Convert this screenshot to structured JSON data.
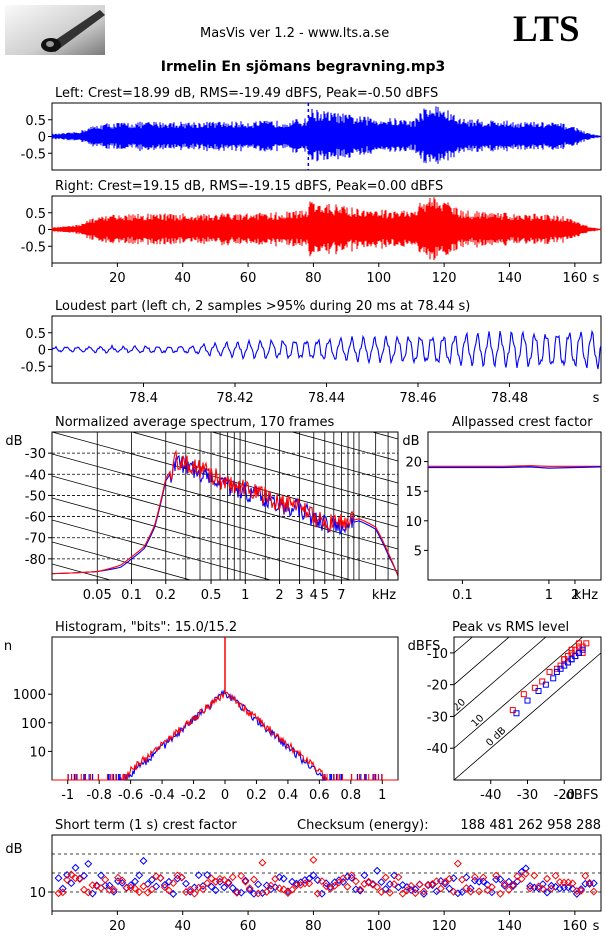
{
  "header": {
    "app_title": "MasVis ver 1.2 - www.lts.a.se",
    "brand": "LTS",
    "file_title": "Irmelin En sjömans begravning.mp3"
  },
  "colors": {
    "left": "#0000ff",
    "right": "#ff0000",
    "axis": "#000000",
    "grid": "#000000"
  },
  "chart_data": [
    {
      "id": "left-waveform",
      "type": "area",
      "title": "Left: Crest=18.99 dB, RMS=-19.49 dBFS, Peak=-0.50 dBFS",
      "color": "#0000ff",
      "xlim": [
        0,
        168
      ],
      "ylim": [
        -1,
        1
      ],
      "yticks": [
        "0.5",
        "0",
        "-0.5"
      ],
      "ytick_values": [
        0.5,
        0,
        -0.5
      ],
      "marker_x": 78.44,
      "envelope": {
        "x": [
          0,
          4,
          8,
          12,
          16,
          20,
          30,
          40,
          50,
          60,
          70,
          78,
          79,
          85,
          95,
          105,
          111,
          113,
          118,
          121,
          125,
          135,
          145,
          155,
          160,
          164,
          168
        ],
        "amp": [
          0.08,
          0.1,
          0.15,
          0.3,
          0.4,
          0.42,
          0.45,
          0.45,
          0.45,
          0.46,
          0.48,
          0.55,
          0.85,
          0.75,
          0.6,
          0.55,
          0.5,
          0.85,
          0.95,
          0.8,
          0.55,
          0.5,
          0.45,
          0.42,
          0.3,
          0.1,
          0.02
        ]
      }
    },
    {
      "id": "right-waveform",
      "type": "area",
      "title": "Right: Crest=19.15 dB, RMS=-19.15 dBFS, Peak=0.00 dBFS",
      "color": "#ff0000",
      "xlim": [
        0,
        168
      ],
      "ylim": [
        -1,
        1
      ],
      "yticks": [
        "0.5",
        "0",
        "-0.5"
      ],
      "ytick_values": [
        0.5,
        0,
        -0.5
      ],
      "xticks": [
        "20",
        "40",
        "60",
        "80",
        "100",
        "120",
        "140",
        "160"
      ],
      "xtick_values": [
        20,
        40,
        60,
        80,
        100,
        120,
        140,
        160
      ],
      "xunit": "s",
      "envelope": {
        "x": [
          0,
          4,
          8,
          12,
          16,
          20,
          30,
          40,
          50,
          60,
          70,
          78,
          79,
          85,
          95,
          105,
          111,
          113,
          118,
          121,
          125,
          135,
          145,
          155,
          160,
          164,
          168
        ],
        "amp": [
          0.08,
          0.1,
          0.15,
          0.32,
          0.42,
          0.45,
          0.48,
          0.48,
          0.48,
          0.5,
          0.52,
          0.6,
          0.85,
          0.78,
          0.62,
          0.58,
          0.55,
          0.9,
          1.0,
          0.85,
          0.58,
          0.52,
          0.48,
          0.44,
          0.3,
          0.1,
          0.02
        ]
      }
    },
    {
      "id": "loudest-part",
      "type": "line",
      "title": "Loudest part (left  ch, 2 samples >95% during 20 ms at 78.44 s)",
      "color": "#0000ff",
      "xlim": [
        78.38,
        78.5
      ],
      "ylim": [
        -1,
        1
      ],
      "yticks": [
        "0.5",
        "0",
        "-0.5"
      ],
      "ytick_values": [
        0.5,
        0,
        -0.5
      ],
      "xticks": [
        "78.4",
        "78.42",
        "78.44",
        "78.46",
        "78.48"
      ],
      "xtick_values": [
        78.4,
        78.42,
        78.44,
        78.46,
        78.48
      ],
      "xunit": "s",
      "amp_profile": {
        "x": [
          78.38,
          78.41,
          78.42,
          78.44,
          78.46,
          78.48,
          78.5
        ],
        "amp": [
          0.08,
          0.12,
          0.25,
          0.35,
          0.45,
          0.55,
          0.6
        ]
      }
    },
    {
      "id": "average-spectrum",
      "type": "line",
      "title": "Normalized average spectrum, 170 frames",
      "ylabel": "dB",
      "xunit": "kHz",
      "xscale": "log",
      "xlim": [
        0.02,
        22
      ],
      "ylim": [
        -90,
        -20
      ],
      "yticks": [
        "-30",
        "-40",
        "-50",
        "-60",
        "-70",
        "-80"
      ],
      "ytick_values": [
        -30,
        -40,
        -50,
        -60,
        -70,
        -80
      ],
      "xticks": [
        "0.05",
        "0.1",
        "0.2",
        "0.5",
        "1",
        "2",
        "3",
        "4",
        "5",
        "7"
      ],
      "xtick_values": [
        0.05,
        0.1,
        0.2,
        0.5,
        1,
        2,
        3,
        4,
        5,
        7
      ],
      "series": [
        {
          "color": "#0000ff",
          "x": [
            0.02,
            0.05,
            0.08,
            0.1,
            0.13,
            0.16,
            0.2,
            0.25,
            0.3,
            0.4,
            0.5,
            0.7,
            1,
            1.5,
            2,
            3,
            4,
            5,
            7,
            10,
            14,
            18,
            22
          ],
          "y": [
            -87,
            -86,
            -84,
            -80,
            -75,
            -65,
            -43,
            -35,
            -36,
            -39,
            -41,
            -46,
            -48,
            -52,
            -55,
            -56,
            -61,
            -64,
            -64,
            -62,
            -66,
            -78,
            -88
          ]
        },
        {
          "color": "#ff0000",
          "x": [
            0.02,
            0.05,
            0.08,
            0.1,
            0.13,
            0.16,
            0.2,
            0.25,
            0.3,
            0.4,
            0.5,
            0.7,
            1,
            1.5,
            2,
            3,
            4,
            5,
            7,
            10,
            14,
            18,
            22
          ],
          "y": [
            -87,
            -86,
            -83,
            -79,
            -74,
            -64,
            -42,
            -33,
            -35,
            -38,
            -40,
            -45,
            -47,
            -51,
            -54,
            -55,
            -60,
            -63,
            -63,
            -61,
            -65,
            -77,
            -88
          ]
        }
      ]
    },
    {
      "id": "allpassed-crest",
      "type": "line",
      "title": "Allpassed crest factor",
      "ylabel": "dB",
      "xunit": "kHz",
      "xscale": "log",
      "xlim": [
        0.04,
        4
      ],
      "ylim": [
        0,
        25
      ],
      "yticks": [
        "20",
        "15",
        "10",
        "5"
      ],
      "ytick_values": [
        20,
        15,
        10,
        5
      ],
      "xticks": [
        "0.1",
        "1",
        "2"
      ],
      "xtick_values": [
        0.1,
        1,
        2
      ],
      "series": [
        {
          "color": "#ff0000",
          "x": [
            0.04,
            0.3,
            0.6,
            1,
            2,
            4
          ],
          "y": [
            19.2,
            19.2,
            19.3,
            19.2,
            19.2,
            19.2
          ]
        },
        {
          "color": "#0000ff",
          "x": [
            0.04,
            0.3,
            0.6,
            1,
            2,
            4
          ],
          "y": [
            19.0,
            19.0,
            19.1,
            18.9,
            19.0,
            19.1
          ]
        }
      ]
    },
    {
      "id": "histogram",
      "type": "line",
      "title": "Histogram, \"bits\": 15.0/15.2",
      "ylabel": "n",
      "yscale": "log",
      "xlim": [
        -1.1,
        1.1
      ],
      "ylim": [
        1,
        100000
      ],
      "yticks": [
        "1000",
        "100",
        "10"
      ],
      "ytick_values": [
        1000,
        100,
        10
      ],
      "xticks": [
        "-1",
        "-0.8",
        "-0.6",
        "-0.4",
        "-0.2",
        "0",
        "0.2",
        "0.4",
        "0.6",
        "0.8",
        "1"
      ],
      "xtick_values": [
        -1,
        -0.8,
        -0.6,
        -0.4,
        -0.2,
        0,
        0.2,
        0.4,
        0.6,
        0.8,
        1
      ],
      "peak": 1200
    },
    {
      "id": "peak-vs-rms",
      "type": "scatter",
      "title": "Peak vs RMS level",
      "ylabel": "dBFS",
      "xunit": "dBFS",
      "xlim": [
        -50,
        -10
      ],
      "ylim": [
        -50,
        -5
      ],
      "yticks": [
        "-10",
        "-20",
        "-30",
        "-40"
      ],
      "ytick_values": [
        -10,
        -20,
        -30,
        -40
      ],
      "xticks": [
        "-40",
        "-30",
        "-20"
      ],
      "xtick_values": [
        -40,
        -30,
        -20
      ],
      "crest_lines": [
        "40",
        "30",
        "20",
        "10",
        "0 dB"
      ],
      "crest_values": [
        40,
        30,
        20,
        10,
        0
      ],
      "series": [
        {
          "color": "#ff0000",
          "x": [
            -34,
            -31,
            -28,
            -26,
            -24,
            -22,
            -21,
            -20,
            -19,
            -18,
            -17,
            -16,
            -15,
            -14,
            -19,
            -17,
            -15,
            -20,
            -18,
            -16
          ],
          "y": [
            -28,
            -23,
            -21,
            -19,
            -16,
            -15,
            -14,
            -12,
            -11,
            -10,
            -9,
            -8,
            -8,
            -7,
            -13,
            -11,
            -10,
            -12,
            -9,
            -7
          ]
        },
        {
          "color": "#0000ff",
          "x": [
            -33,
            -30,
            -27,
            -25,
            -23,
            -22,
            -20,
            -19,
            -18,
            -17,
            -16,
            -15,
            -21,
            -18,
            -16
          ],
          "y": [
            -29,
            -25,
            -22,
            -20,
            -18,
            -16,
            -14,
            -13,
            -12,
            -11,
            -10,
            -9,
            -15,
            -12,
            -10
          ]
        }
      ]
    },
    {
      "id": "short-term-crest",
      "type": "scatter",
      "title": "Short term (1 s) crest factor",
      "ylabel": "dB",
      "xunit": "s",
      "xlim": [
        0,
        168
      ],
      "ylim": [
        5,
        25
      ],
      "yticks": [
        "10"
      ],
      "ytick_values": [
        10
      ],
      "xticks": [
        "20",
        "40",
        "60",
        "80",
        "100",
        "120",
        "140",
        "160"
      ],
      "xtick_values": [
        20,
        40,
        60,
        80,
        100,
        120,
        140,
        160
      ],
      "dashed_levels": [
        10,
        15,
        20
      ],
      "checksum_label": "Checksum (energy):",
      "checksum_value": "188 481 262 958 288"
    }
  ]
}
